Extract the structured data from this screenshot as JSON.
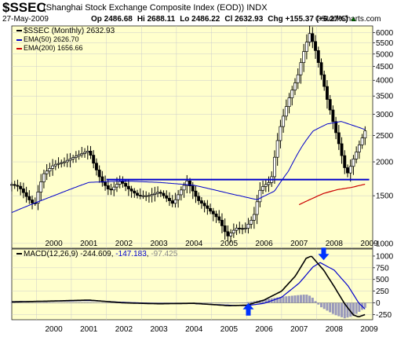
{
  "header": {
    "ticker": "$SSEC",
    "name": "(Shanghai Stock Exchange Composite Index (EOD))",
    "exchange": "INDX",
    "date": "27-May-2009",
    "open": "Op 2486.68",
    "high": "Hi 2688.11",
    "low": "Lo 2486.22",
    "close": "Cl 2632.93",
    "change": "Chg +155.37 (+6.27%)",
    "change_arrow": "▲",
    "brand": "©StockCharts.com"
  },
  "legend": {
    "price": "$SSEC (Monthly) 2632.93",
    "ema50": "EMA(50) 2626.70",
    "ema200": "EMA(200) 1656.66"
  },
  "macd_legend": {
    "label": "MACD(12,26,9)",
    "macd": "-244.609",
    "signal": "-147.183",
    "histogram": "-97.425"
  },
  "colors": {
    "panel_bg": "#ffffcc",
    "price": "#000000",
    "ema50": "#0000cc",
    "ema200": "#cc0000",
    "support": "#0000cc",
    "signal": "#000000",
    "macd": "#0000cc",
    "histogram": "#9999bb",
    "arrow": "#0033ff",
    "grid": "#cccccc"
  },
  "chart_data": [
    {
      "type": "line",
      "subtype": "ohlc-bars",
      "title": "$SSEC (Shanghai Stock Exchange Composite Index (EOD))",
      "frequency": "monthly",
      "y_scale": "log",
      "ylim": [
        960,
        6350
      ],
      "yticks": [
        1000,
        1500,
        2000,
        2500,
        3000,
        3500,
        4000,
        4500,
        5000,
        5500,
        6000
      ],
      "x_range": [
        1999.3,
        2009.6
      ],
      "x_tick_labels": [
        "2000",
        "2001",
        "2002",
        "2003",
        "2004",
        "2005",
        "2006",
        "2007",
        "2008",
        "2009"
      ],
      "series": [
        {
          "name": "$SSEC (Monthly)",
          "anchors": [
            [
              1999.3,
              1650
            ],
            [
              1999.5,
              1620
            ],
            [
              1999.75,
              1470
            ],
            [
              1999.95,
              1380
            ],
            [
              2000.2,
              1800
            ],
            [
              2000.5,
              1950
            ],
            [
              2000.8,
              2000
            ],
            [
              2001.2,
              2120
            ],
            [
              2001.5,
              2200
            ],
            [
              2001.65,
              1950
            ],
            [
              2001.85,
              1700
            ],
            [
              2002.1,
              1560
            ],
            [
              2002.4,
              1700
            ],
            [
              2002.6,
              1600
            ],
            [
              2002.9,
              1500
            ],
            [
              2003.2,
              1500
            ],
            [
              2003.5,
              1550
            ],
            [
              2003.9,
              1400
            ],
            [
              2004.3,
              1700
            ],
            [
              2004.6,
              1450
            ],
            [
              2004.9,
              1340
            ],
            [
              2005.2,
              1230
            ],
            [
              2005.45,
              1060
            ],
            [
              2005.7,
              1140
            ],
            [
              2005.95,
              1130
            ],
            [
              2006.2,
              1250
            ],
            [
              2006.4,
              1600
            ],
            [
              2006.7,
              1700
            ],
            [
              2006.95,
              2650
            ],
            [
              2007.2,
              3400
            ],
            [
              2007.45,
              4100
            ],
            [
              2007.65,
              5200
            ],
            [
              2007.8,
              5950
            ],
            [
              2007.95,
              5250
            ],
            [
              2008.1,
              4350
            ],
            [
              2008.3,
              3400
            ],
            [
              2008.5,
              2700
            ],
            [
              2008.7,
              2150
            ],
            [
              2008.85,
              1780
            ],
            [
              2008.95,
              1900
            ],
            [
              2009.15,
              2200
            ],
            [
              2009.3,
              2450
            ],
            [
              2009.4,
              2632.93
            ]
          ]
        },
        {
          "name": "EMA(50)",
          "anchors": [
            [
              1999.3,
              1300
            ],
            [
              2000.5,
              1500
            ],
            [
              2001.5,
              1680
            ],
            [
              2002.5,
              1700
            ],
            [
              2003.5,
              1680
            ],
            [
              2004.5,
              1640
            ],
            [
              2005.5,
              1530
            ],
            [
              2006.3,
              1450
            ],
            [
              2006.8,
              1560
            ],
            [
              2007.2,
              1850
            ],
            [
              2007.6,
              2300
            ],
            [
              2007.9,
              2600
            ],
            [
              2008.3,
              2760
            ],
            [
              2008.7,
              2820
            ],
            [
              2009.4,
              2626.7
            ]
          ]
        },
        {
          "name": "EMA(200)",
          "anchors": [
            [
              2007.5,
              1390
            ],
            [
              2007.8,
              1450
            ],
            [
              2008.2,
              1530
            ],
            [
              2008.6,
              1580
            ],
            [
              2009.0,
              1610
            ],
            [
              2009.4,
              1656.66
            ]
          ]
        },
        {
          "name": "Support",
          "anchors": [
            [
              2002.0,
              1720
            ],
            [
              2009.5,
              1720
            ]
          ]
        }
      ]
    },
    {
      "type": "line",
      "title": "MACD(12,26,9)",
      "ylim": [
        -360,
        1150
      ],
      "yticks": [
        -250,
        0,
        250,
        500,
        750,
        1000
      ],
      "x_range": [
        1999.3,
        2009.6
      ],
      "x_tick_labels": [
        "2000",
        "2001",
        "2002",
        "2003",
        "2004",
        "2005",
        "2006",
        "2007",
        "2008",
        "2009"
      ],
      "series": [
        {
          "name": "MACD",
          "anchors": [
            [
              1999.3,
              20
            ],
            [
              2000.5,
              40
            ],
            [
              2001.5,
              60
            ],
            [
              2002.5,
              0
            ],
            [
              2003.5,
              -20
            ],
            [
              2004.5,
              -10
            ],
            [
              2005.5,
              -60
            ],
            [
              2006.0,
              -50
            ],
            [
              2006.5,
              60
            ],
            [
              2007.0,
              250
            ],
            [
              2007.4,
              580
            ],
            [
              2007.7,
              950
            ],
            [
              2007.85,
              1000
            ],
            [
              2008.2,
              700
            ],
            [
              2008.5,
              350
            ],
            [
              2008.8,
              -20
            ],
            [
              2009.05,
              -260
            ],
            [
              2009.2,
              -300
            ],
            [
              2009.4,
              -244.609
            ]
          ]
        },
        {
          "name": "Signal",
          "anchors": [
            [
              1999.3,
              25
            ],
            [
              2000.5,
              35
            ],
            [
              2001.5,
              50
            ],
            [
              2002.5,
              10
            ],
            [
              2003.5,
              -15
            ],
            [
              2004.5,
              -15
            ],
            [
              2005.5,
              -50
            ],
            [
              2006.0,
              -60
            ],
            [
              2006.5,
              -10
            ],
            [
              2007.0,
              120
            ],
            [
              2007.5,
              420
            ],
            [
              2007.9,
              770
            ],
            [
              2008.1,
              860
            ],
            [
              2008.5,
              700
            ],
            [
              2008.9,
              360
            ],
            [
              2009.2,
              0
            ],
            [
              2009.4,
              -147.183
            ]
          ]
        },
        {
          "name": "Histogram",
          "anchors": [
            [
              1999.3,
              -5
            ],
            [
              2000.5,
              5
            ],
            [
              2001.5,
              10
            ],
            [
              2002.5,
              -10
            ],
            [
              2003.5,
              -5
            ],
            [
              2004.5,
              5
            ],
            [
              2005.5,
              -10
            ],
            [
              2006.0,
              10
            ],
            [
              2006.5,
              70
            ],
            [
              2007.0,
              130
            ],
            [
              2007.4,
              160
            ],
            [
              2007.7,
              180
            ],
            [
              2007.85,
              140
            ],
            [
              2008.1,
              -80
            ],
            [
              2008.5,
              -250
            ],
            [
              2008.8,
              -330
            ],
            [
              2009.05,
              -280
            ],
            [
              2009.2,
              -200
            ],
            [
              2009.4,
              -97.425
            ]
          ]
        }
      ],
      "annotations": [
        {
          "type": "arrow-up",
          "x": 2006.05,
          "y": -170
        },
        {
          "type": "arrow-down",
          "x": 2008.2,
          "y": 1080
        }
      ]
    }
  ]
}
